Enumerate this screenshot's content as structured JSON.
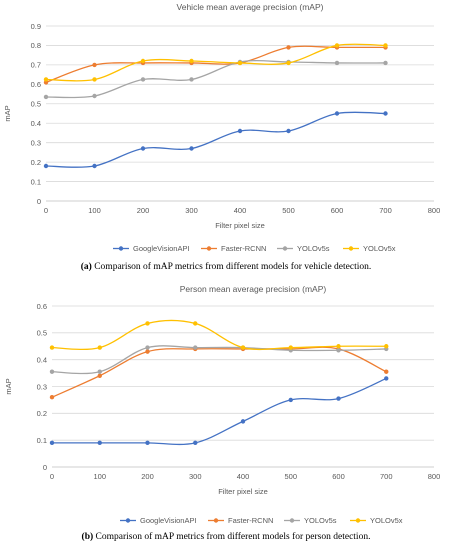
{
  "chart_data": [
    {
      "type": "line",
      "title": "Vehicle mean average precision (mAP)",
      "xlabel": "Filter pixel size",
      "ylabel": "mAP",
      "x": [
        0,
        100,
        200,
        300,
        400,
        500,
        600,
        700
      ],
      "xlim": [
        0,
        800
      ],
      "xticks": [
        "0",
        "100",
        "200",
        "300",
        "400",
        "500",
        "600",
        "700",
        "800"
      ],
      "ylim": [
        0,
        0.9
      ],
      "yticks": [
        "0",
        "0.1",
        "0.2",
        "0.3",
        "0.4",
        "0.5",
        "0.6",
        "0.7",
        "0.8",
        "0.9"
      ],
      "grid": true,
      "legend_position": "bottom",
      "series": [
        {
          "name": "GoogleVisionAPI",
          "color": "#4472c4",
          "values": [
            0.18,
            0.18,
            0.27,
            0.27,
            0.36,
            0.36,
            0.45,
            0.45
          ]
        },
        {
          "name": "Faster-RCNN",
          "color": "#ed7d31",
          "values": [
            0.61,
            0.7,
            0.71,
            0.71,
            0.71,
            0.79,
            0.79,
            0.79
          ]
        },
        {
          "name": "YOLOv5s",
          "color": "#a5a5a5",
          "values": [
            0.535,
            0.54,
            0.625,
            0.625,
            0.715,
            0.715,
            0.71,
            0.71
          ]
        },
        {
          "name": "YOLOv5x",
          "color": "#ffc000",
          "values": [
            0.625,
            0.625,
            0.72,
            0.72,
            0.71,
            0.71,
            0.8,
            0.8
          ]
        }
      ],
      "caption_label": "(a)",
      "caption_text": " Comparison of mAP metrics from different models for vehicle detection."
    },
    {
      "type": "line",
      "title": "Person mean average precision (mAP)",
      "xlabel": "Filter pixel size",
      "ylabel": "mAP",
      "x": [
        0,
        100,
        200,
        300,
        400,
        500,
        600,
        700
      ],
      "xlim": [
        0,
        800
      ],
      "xticks": [
        "0",
        "100",
        "200",
        "300",
        "400",
        "500",
        "600",
        "700",
        "800"
      ],
      "ylim": [
        0,
        0.6
      ],
      "yticks": [
        "0",
        "0.1",
        "0.2",
        "0.3",
        "0.4",
        "0.5",
        "0.6"
      ],
      "grid": true,
      "legend_position": "bottom",
      "series": [
        {
          "name": "GoogleVisionAPI",
          "color": "#4472c4",
          "values": [
            0.09,
            0.09,
            0.09,
            0.09,
            0.17,
            0.25,
            0.255,
            0.33
          ]
        },
        {
          "name": "Faster-RCNN",
          "color": "#ed7d31",
          "values": [
            0.26,
            0.34,
            0.43,
            0.44,
            0.44,
            0.44,
            0.44,
            0.355
          ]
        },
        {
          "name": "YOLOv5s",
          "color": "#a5a5a5",
          "values": [
            0.355,
            0.355,
            0.445,
            0.445,
            0.445,
            0.435,
            0.435,
            0.44
          ]
        },
        {
          "name": "YOLOv5x",
          "color": "#ffc000",
          "values": [
            0.445,
            0.445,
            0.535,
            0.535,
            0.445,
            0.445,
            0.45,
            0.45
          ]
        }
      ],
      "caption_label": "(b)",
      "caption_text": " Comparison of mAP metrics from different models for person detection."
    }
  ]
}
